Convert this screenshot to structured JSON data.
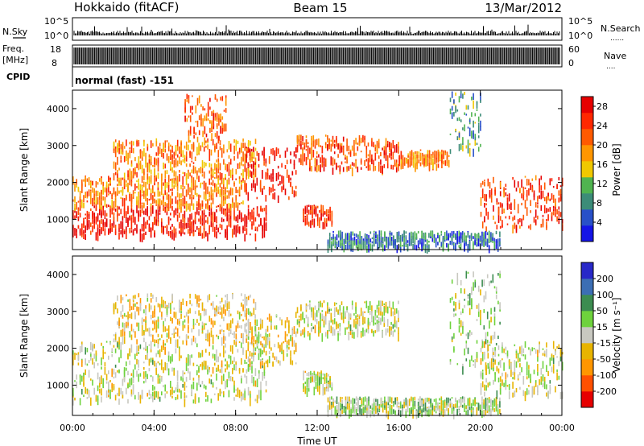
{
  "header": {
    "station": "Hokkaido (fitACF)",
    "beam": "Beam 15",
    "date": "13/Mar/2012"
  },
  "aux_panels": {
    "nsky_label": "N.Sky",
    "nsky_ticks": [
      "10^5",
      "10^0"
    ],
    "nsearch_label": "N.Search",
    "freq_label_1": "Freq.",
    "freq_label_2": "[MHz]",
    "freq_ticks": [
      "18",
      "8"
    ],
    "nave_ticks": [
      "60",
      "0"
    ],
    "nave_label": "Nave",
    "cpid_label": "CPID",
    "cpid_value": "normal (fast) -151"
  },
  "colors": {
    "power": [
      "#1414e6",
      "#2850c8",
      "#3c8c78",
      "#50b450",
      "#f0c800",
      "#ff9600",
      "#ff5a00",
      "#ff2800",
      "#e60000"
    ],
    "velocity": [
      "#e60000",
      "#ff5000",
      "#ff9600",
      "#e8b400",
      "#c8c8c0",
      "#6ed23c",
      "#3c8c50",
      "#3c6eb4",
      "#2828c8"
    ]
  },
  "chart_data": [
    {
      "type": "heatmap",
      "panel": "power",
      "xlabel": "Time UT",
      "ylabel": "Slant Range [km]",
      "x_ticks": [
        "00:00",
        "04:00",
        "08:00",
        "12:00",
        "16:00",
        "20:00",
        "00:00"
      ],
      "xlim_hours": [
        0,
        24
      ],
      "y_ticks": [
        "1000",
        "2000",
        "3000",
        "4000"
      ],
      "ylim": [
        180,
        4500
      ],
      "colorbar": {
        "label": "Power [dB]",
        "ticks": [
          "4",
          "8",
          "12",
          "16",
          "20",
          "24",
          "28"
        ],
        "range": [
          0,
          30
        ]
      },
      "echo_regions": [
        {
          "t": [
            0.0,
            9.5
          ],
          "r": [
            600,
            1400
          ],
          "level": 27
        },
        {
          "t": [
            0.0,
            8.5
          ],
          "r": [
            1400,
            2200
          ],
          "level": 20
        },
        {
          "t": [
            2.0,
            9.0
          ],
          "r": [
            2200,
            3200
          ],
          "level": 20
        },
        {
          "t": [
            5.5,
            7.5
          ],
          "r": [
            3200,
            4400
          ],
          "level": 22
        },
        {
          "t": [
            8.5,
            11.0
          ],
          "r": [
            1600,
            3000
          ],
          "level": 26
        },
        {
          "t": [
            11.0,
            16.0
          ],
          "r": [
            2400,
            3300
          ],
          "level": 23
        },
        {
          "t": [
            11.3,
            12.7
          ],
          "r": [
            900,
            1400
          ],
          "level": 26
        },
        {
          "t": [
            16.0,
            18.5
          ],
          "r": [
            2500,
            2900
          ],
          "level": 20
        },
        {
          "t": [
            18.5,
            20.0
          ],
          "r": [
            2800,
            4500
          ],
          "level": 10
        },
        {
          "t": [
            20.0,
            24.0
          ],
          "r": [
            800,
            2200
          ],
          "level": 24
        },
        {
          "t": [
            12.5,
            21.0
          ],
          "r": [
            300,
            700
          ],
          "level": 7
        }
      ]
    },
    {
      "type": "heatmap",
      "panel": "velocity",
      "xlabel": "Time UT",
      "ylabel": "Slant Range [km]",
      "x_ticks": [
        "00:00",
        "04:00",
        "08:00",
        "12:00",
        "16:00",
        "20:00",
        "00:00"
      ],
      "xlim_hours": [
        0,
        24
      ],
      "y_ticks": [
        "1000",
        "2000",
        "3000",
        "4000"
      ],
      "ylim": [
        180,
        4500
      ],
      "colorbar": {
        "label": "Velocity [m s⁻¹]",
        "ticks": [
          "200",
          "100",
          "50",
          "15",
          "-15",
          "-50",
          "-100",
          "-200"
        ],
        "range": [
          -250,
          250
        ]
      },
      "echo_regions": [
        {
          "t": [
            0.0,
            9.5
          ],
          "r": [
            600,
            2200
          ],
          "level": 0
        },
        {
          "t": [
            2.0,
            9.0
          ],
          "r": [
            2200,
            3500
          ],
          "level": -40
        },
        {
          "t": [
            8.5,
            11.0
          ],
          "r": [
            1600,
            3000
          ],
          "level": -30
        },
        {
          "t": [
            11.0,
            16.0
          ],
          "r": [
            2400,
            3300
          ],
          "level": 0
        },
        {
          "t": [
            11.3,
            12.7
          ],
          "r": [
            900,
            1400
          ],
          "level": 0
        },
        {
          "t": [
            12.5,
            21.0
          ],
          "r": [
            300,
            700
          ],
          "level": 30
        },
        {
          "t": [
            18.5,
            21.0
          ],
          "r": [
            1500,
            4200
          ],
          "level": 30
        },
        {
          "t": [
            20.0,
            24.0
          ],
          "r": [
            800,
            2200
          ],
          "level": 0
        }
      ]
    }
  ]
}
